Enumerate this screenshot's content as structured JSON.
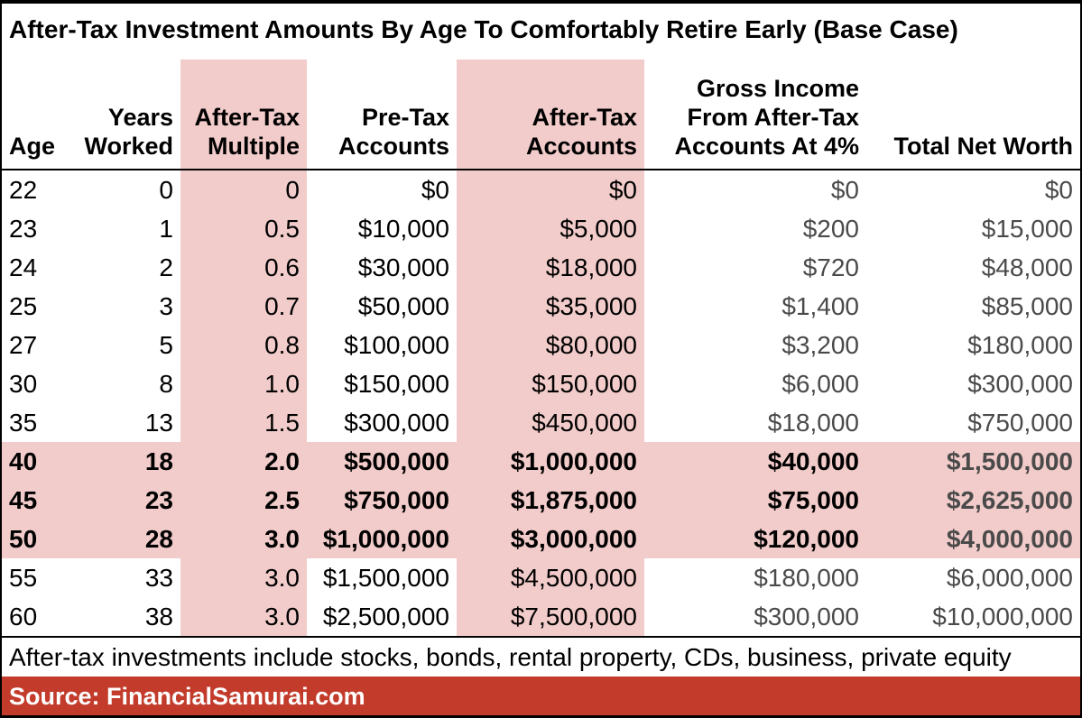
{
  "colors": {
    "highlight_pink": "#F2CCCA",
    "source_red": "#C23B2B",
    "muted_text": "#4A4A4A"
  },
  "chart_data": {
    "type": "table",
    "title": "After-Tax Investment Amounts By Age To Comfortably Retire Early (Base Case)",
    "columns": [
      {
        "id": "age",
        "label": "Age",
        "highlight": false,
        "muted": false
      },
      {
        "id": "years_worked",
        "label": "Years\nWorked",
        "highlight": false,
        "muted": false
      },
      {
        "id": "after_tax_multiple",
        "label": "After-Tax\nMultiple",
        "highlight": true,
        "muted": false
      },
      {
        "id": "pre_tax_accounts",
        "label": "Pre-Tax\nAccounts",
        "highlight": false,
        "muted": false
      },
      {
        "id": "after_tax_accounts",
        "label": "After-Tax\nAccounts",
        "highlight": true,
        "muted": false
      },
      {
        "id": "gross_income",
        "label": "Gross Income\nFrom After-Tax\nAccounts At 4%",
        "highlight": false,
        "muted": true
      },
      {
        "id": "total_net_worth",
        "label": "Total Net Worth",
        "highlight": false,
        "muted": true
      }
    ],
    "rows": [
      {
        "age": "22",
        "years_worked": "0",
        "after_tax_multiple": "0",
        "pre_tax_accounts": "$0",
        "after_tax_accounts": "$0",
        "gross_income": "$0",
        "total_net_worth": "$0",
        "emphasized": false
      },
      {
        "age": "23",
        "years_worked": "1",
        "after_tax_multiple": "0.5",
        "pre_tax_accounts": "$10,000",
        "after_tax_accounts": "$5,000",
        "gross_income": "$200",
        "total_net_worth": "$15,000",
        "emphasized": false
      },
      {
        "age": "24",
        "years_worked": "2",
        "after_tax_multiple": "0.6",
        "pre_tax_accounts": "$30,000",
        "after_tax_accounts": "$18,000",
        "gross_income": "$720",
        "total_net_worth": "$48,000",
        "emphasized": false
      },
      {
        "age": "25",
        "years_worked": "3",
        "after_tax_multiple": "0.7",
        "pre_tax_accounts": "$50,000",
        "after_tax_accounts": "$35,000",
        "gross_income": "$1,400",
        "total_net_worth": "$85,000",
        "emphasized": false
      },
      {
        "age": "27",
        "years_worked": "5",
        "after_tax_multiple": "0.8",
        "pre_tax_accounts": "$100,000",
        "after_tax_accounts": "$80,000",
        "gross_income": "$3,200",
        "total_net_worth": "$180,000",
        "emphasized": false
      },
      {
        "age": "30",
        "years_worked": "8",
        "after_tax_multiple": "1.0",
        "pre_tax_accounts": "$150,000",
        "after_tax_accounts": "$150,000",
        "gross_income": "$6,000",
        "total_net_worth": "$300,000",
        "emphasized": false
      },
      {
        "age": "35",
        "years_worked": "13",
        "after_tax_multiple": "1.5",
        "pre_tax_accounts": "$300,000",
        "after_tax_accounts": "$450,000",
        "gross_income": "$18,000",
        "total_net_worth": "$750,000",
        "emphasized": false
      },
      {
        "age": "40",
        "years_worked": "18",
        "after_tax_multiple": "2.0",
        "pre_tax_accounts": "$500,000",
        "after_tax_accounts": "$1,000,000",
        "gross_income": "$40,000",
        "total_net_worth": "$1,500,000",
        "emphasized": true
      },
      {
        "age": "45",
        "years_worked": "23",
        "after_tax_multiple": "2.5",
        "pre_tax_accounts": "$750,000",
        "after_tax_accounts": "$1,875,000",
        "gross_income": "$75,000",
        "total_net_worth": "$2,625,000",
        "emphasized": true
      },
      {
        "age": "50",
        "years_worked": "28",
        "after_tax_multiple": "3.0",
        "pre_tax_accounts": "$1,000,000",
        "after_tax_accounts": "$3,000,000",
        "gross_income": "$120,000",
        "total_net_worth": "$4,000,000",
        "emphasized": true
      },
      {
        "age": "55",
        "years_worked": "33",
        "after_tax_multiple": "3.0",
        "pre_tax_accounts": "$1,500,000",
        "after_tax_accounts": "$4,500,000",
        "gross_income": "$180,000",
        "total_net_worth": "$6,000,000",
        "emphasized": false
      },
      {
        "age": "60",
        "years_worked": "38",
        "after_tax_multiple": "3.0",
        "pre_tax_accounts": "$2,500,000",
        "after_tax_accounts": "$7,500,000",
        "gross_income": "$300,000",
        "total_net_worth": "$10,000,000",
        "emphasized": false
      }
    ],
    "footnote": "After-tax investments include stocks, bonds, rental property, CDs, business, private equity",
    "source": "Source: FinancialSamurai.com"
  }
}
